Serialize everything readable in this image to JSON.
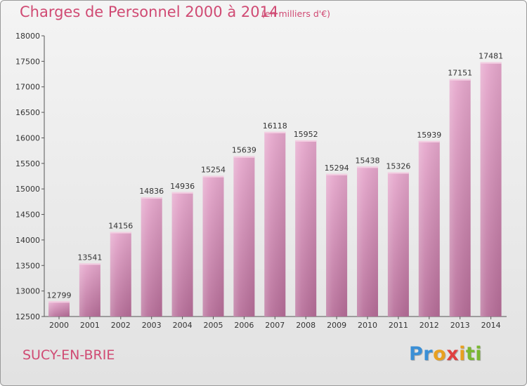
{
  "header": {
    "title": "Charges de Personnel 2000 à 2014",
    "unit": "(en milliers d'€)"
  },
  "footer": {
    "city": "SUCY-EN-BRIE",
    "logo_letters": [
      "P",
      "r",
      "o",
      "x",
      "i",
      "t",
      "i"
    ],
    "logo_colors": [
      "#3a8fd6",
      "#3a8fd6",
      "#e8a020",
      "#e04040",
      "#e8a020",
      "#7ab830",
      "#7ab830"
    ]
  },
  "colors": {
    "title": "#d04a73",
    "bar_top": "#e6a7cc",
    "bar_bottom": "#b66d98"
  },
  "chart_data": {
    "type": "bar",
    "title": "Charges de Personnel 2000 à 2014",
    "xlabel": "",
    "ylabel": "",
    "ylim": [
      12500,
      18000
    ],
    "yticks": [
      12500,
      13000,
      13500,
      14000,
      14500,
      15000,
      15500,
      16000,
      16500,
      17000,
      17500,
      18000
    ],
    "grid": false,
    "categories": [
      "2000",
      "2001",
      "2002",
      "2003",
      "2004",
      "2005",
      "2006",
      "2007",
      "2008",
      "2009",
      "2010",
      "2011",
      "2012",
      "2013",
      "2014"
    ],
    "values": [
      12799,
      13541,
      14156,
      14836,
      14936,
      15254,
      15639,
      16118,
      15952,
      15294,
      15438,
      15326,
      15939,
      17151,
      17481
    ]
  }
}
